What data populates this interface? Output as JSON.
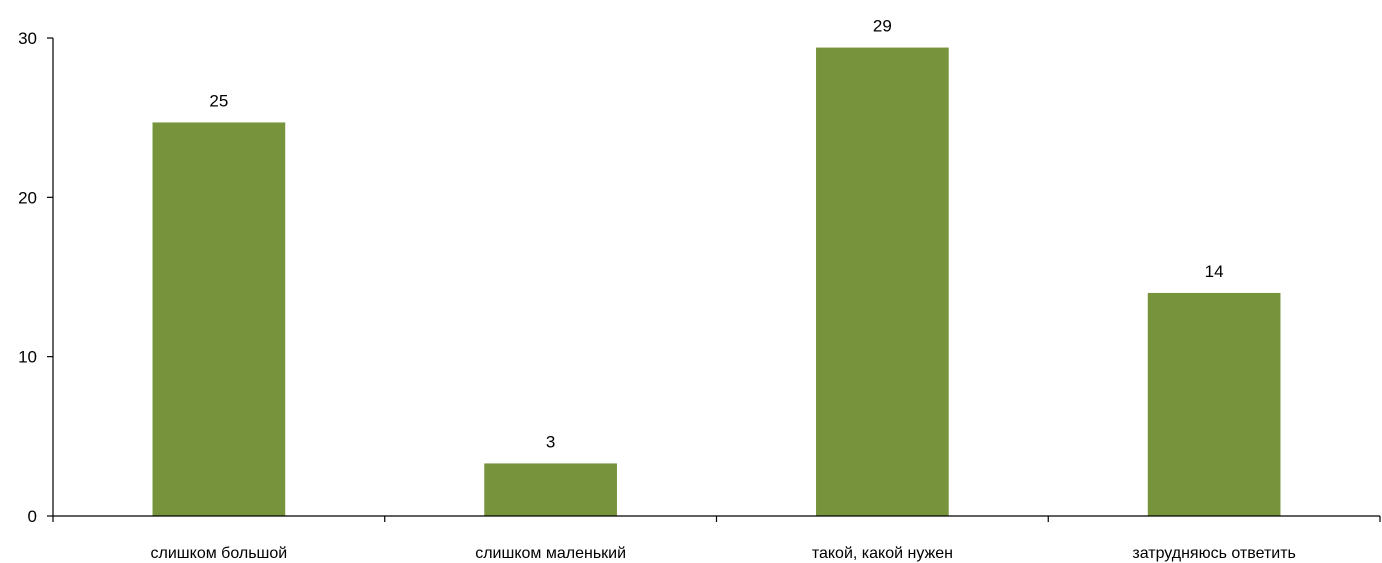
{
  "chart_data": {
    "type": "bar",
    "title": "",
    "xlabel": "",
    "ylabel": "",
    "categories": [
      "слишком большой",
      "слишком маленький",
      "такой, какой нужен",
      "затрудняюсь ответить"
    ],
    "values": [
      24.7,
      3.3,
      29.4,
      14.0
    ],
    "data_labels": [
      "25",
      "3",
      "29",
      "14"
    ],
    "ylim": [
      0,
      30
    ],
    "yticks": [
      0,
      10,
      20,
      30
    ],
    "ytick_labels": [
      "0",
      "10",
      "20",
      "30"
    ],
    "grid": false,
    "legend": "none",
    "bar_color": "#77933c"
  }
}
